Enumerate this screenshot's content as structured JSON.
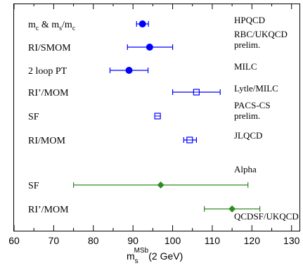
{
  "chart_data": {
    "type": "scatter",
    "title": "",
    "xlabel": "m",
    "xlabel_sub": "s",
    "xlabel_sup": "MSb",
    "xlabel_suffix": "(2 GeV)",
    "xlim": [
      60,
      132
    ],
    "xticks": [
      60,
      70,
      80,
      90,
      100,
      110,
      120,
      130
    ],
    "grid": false,
    "legend": "none",
    "points": [
      {
        "method": "m",
        "method_sub1": "c",
        "method_mid": " & m",
        "method_sub2": "s",
        "method_slash": "/m",
        "method_sub3": "c",
        "collab": [
          "HPQCD"
        ],
        "x": 92.4,
        "xerr": [
          1.5,
          1.5
        ],
        "color": "#0000ff",
        "marker": "filled-circle"
      },
      {
        "method": "RI/SMOM",
        "collab": [
          "RBC/UKQCD",
          "prelim."
        ],
        "x": 94.2,
        "xerr": [
          5.6,
          5.8
        ],
        "color": "#0000ff",
        "marker": "filled-circle"
      },
      {
        "method": "2 loop PT",
        "collab": [
          "MILC"
        ],
        "x": 89.0,
        "xerr": [
          4.8,
          4.8
        ],
        "color": "#0000ff",
        "marker": "filled-circle"
      },
      {
        "method": "RI’/MOM",
        "collab": [
          "Lytle/MILC"
        ],
        "x": 106.0,
        "xerr": [
          6.0,
          6.0
        ],
        "color": "#0000ff",
        "marker": "open-square"
      },
      {
        "method": "SF",
        "collab": [
          "PACS-CS",
          "prelim."
        ],
        "x": 96.2,
        "xerr": [
          0.6,
          0.6
        ],
        "color": "#0000ff",
        "marker": "open-square"
      },
      {
        "method": "RI/MOM",
        "collab": [
          "JLQCD"
        ],
        "x": 104.3,
        "xerr": [
          1.5,
          1.7
        ],
        "color": "#0000ff",
        "marker": "open-square"
      },
      {
        "method": "SF",
        "collab": [
          "Alpha"
        ],
        "x": 97.0,
        "xerr": [
          22.0,
          22.0
        ],
        "color": "#2e8b22",
        "marker": "filled-diamond"
      },
      {
        "method": "RI’/MOM",
        "collab": [
          "QCDSF/UKQCD"
        ],
        "x": 115.0,
        "xerr": [
          7.0,
          7.0
        ],
        "color": "#2e8b22",
        "marker": "filled-diamond"
      }
    ]
  }
}
